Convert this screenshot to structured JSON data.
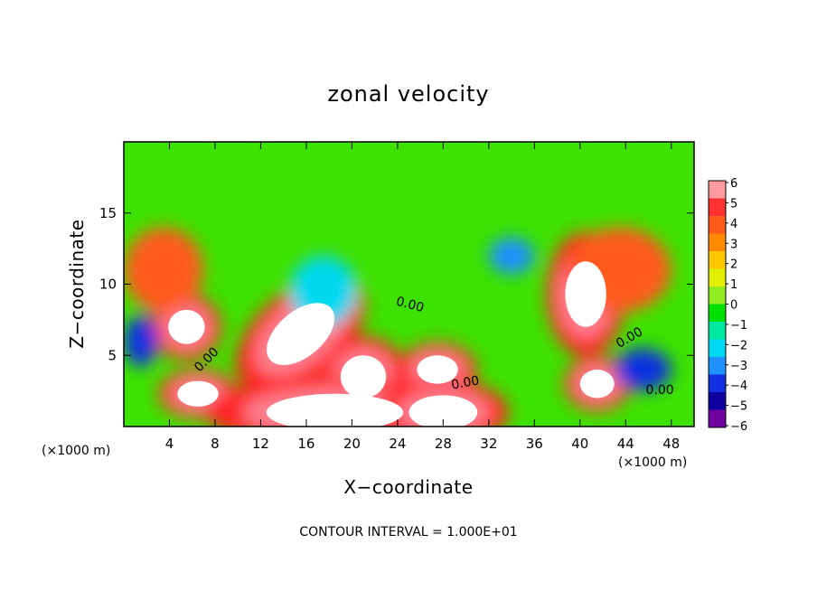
{
  "chart_data": {
    "type": "heatmap",
    "title": "zonal velocity",
    "xlabel": "X−coordinate",
    "ylabel": "Z−coordinate",
    "x_units": "(×1000 m)",
    "y_units": "(×1000 m)",
    "footer": "CONTOUR INTERVAL = 1.000E+01",
    "xlim": [
      0,
      50
    ],
    "ylim": [
      0,
      20
    ],
    "x_ticks": [
      4,
      8,
      12,
      16,
      20,
      24,
      28,
      32,
      36,
      40,
      44,
      48
    ],
    "y_ticks": [
      5,
      10,
      15
    ],
    "colorbar": {
      "ticks": [
        "6",
        "5",
        "4",
        "3",
        "2",
        "1",
        "0",
        "−1",
        "−2",
        "−3",
        "−4",
        "−5",
        "−6"
      ],
      "colors": [
        "#ff9aa0",
        "#ff3030",
        "#ff5a1a",
        "#ff8a00",
        "#ffc800",
        "#e0f000",
        "#90ee20",
        "#00e000",
        "#00e8a0",
        "#00d8f0",
        "#1e90ff",
        "#1030e0",
        "#1000a0",
        "#7000a0"
      ]
    },
    "contour_labels": [
      {
        "text": "0.00",
        "x": 7.5,
        "y": 4.5,
        "rotation": -45
      },
      {
        "text": "0.00",
        "x": 25.0,
        "y": 8.3,
        "rotation": 15
      },
      {
        "text": "0.00",
        "x": 30.0,
        "y": 2.8,
        "rotation": -10
      },
      {
        "text": "0.00",
        "x": 44.5,
        "y": 6.0,
        "rotation": -30
      },
      {
        "text": "0.00",
        "x": 47.0,
        "y": 2.3,
        "rotation": 0
      }
    ],
    "features": [
      {
        "value": 7,
        "x": 5.5,
        "y": 7.0,
        "rx": 1.6,
        "ry": 1.2
      },
      {
        "value": 7,
        "x": 15.5,
        "y": 6.5,
        "rx": 3.5,
        "ry": 1.6,
        "rotation": -40
      },
      {
        "value": 7,
        "x": 6.5,
        "y": 2.3,
        "rx": 1.8,
        "ry": 0.9
      },
      {
        "value": 7,
        "x": 21.0,
        "y": 3.5,
        "rx": 2.0,
        "ry": 1.5
      },
      {
        "value": 7,
        "x": 27.5,
        "y": 4.0,
        "rx": 1.8,
        "ry": 1.0
      },
      {
        "value": 7,
        "x": 40.5,
        "y": 9.3,
        "rx": 1.8,
        "ry": 2.3
      },
      {
        "value": 7,
        "x": 41.5,
        "y": 3.0,
        "rx": 1.5,
        "ry": 1.0
      },
      {
        "value": 7,
        "x": 18.5,
        "y": 1.0,
        "rx": 6.0,
        "ry": 1.3
      },
      {
        "value": 7,
        "x": 28.0,
        "y": 1.0,
        "rx": 3.0,
        "ry": 1.2
      },
      {
        "value": 4,
        "x": 3.5,
        "y": 11.0,
        "rx": 3.5,
        "ry": 3.0
      },
      {
        "value": 4,
        "x": 43.5,
        "y": 11.0,
        "rx": 4.5,
        "ry": 3.0
      },
      {
        "value": -4,
        "x": 34.0,
        "y": 12.0,
        "rx": 2.0,
        "ry": 1.3
      },
      {
        "value": -5,
        "x": 1.5,
        "y": 6.0,
        "rx": 1.5,
        "ry": 1.8
      },
      {
        "value": -5,
        "x": 45.5,
        "y": 4.0,
        "rx": 2.5,
        "ry": 1.5
      },
      {
        "value": -3,
        "x": 17.5,
        "y": 9.5,
        "rx": 3.0,
        "ry": 2.5
      }
    ]
  }
}
